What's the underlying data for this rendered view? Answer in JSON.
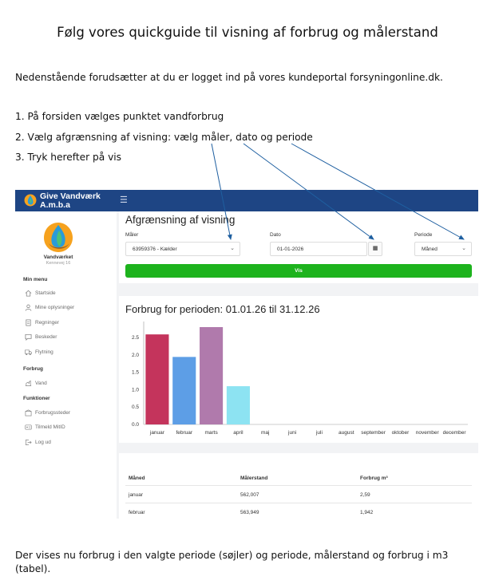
{
  "doc": {
    "title": "Følg vores quickguide til visning af forbrug og målerstand",
    "intro": "Nedenstående forudsætter at du er logget ind på vores kundeportal forsyningonline.dk.",
    "steps": [
      "1. På forsiden vælges punktet vandforbrug",
      "2. Vælg afgrænsning af visning: vælg måler, dato og periode",
      "3. Tryk herefter på vis"
    ],
    "footer": "Der vises nu forbrug i den valgte periode (søjler) og periode, målerstand og forbrug i m3 (tabel)."
  },
  "portal": {
    "brand": [
      "Give Vandværk",
      "A.m.b.a"
    ],
    "sidebar": {
      "org_name": "Vandværket",
      "address": "Kennevej 16",
      "sections": [
        {
          "heading": "Min menu",
          "items": [
            {
              "label": "Startside",
              "icon": "home-icon"
            },
            {
              "label": "Mine oplysninger",
              "icon": "user-icon"
            },
            {
              "label": "Regninger",
              "icon": "document-icon"
            },
            {
              "label": "Beskeder",
              "icon": "message-icon"
            },
            {
              "label": "Flytning",
              "icon": "truck-icon"
            }
          ]
        },
        {
          "heading": "Forbrug",
          "items": [
            {
              "label": "Vand",
              "icon": "water-icon"
            }
          ]
        },
        {
          "heading": "Funktioner",
          "items": [
            {
              "label": "Forbrugssteder",
              "icon": "building-icon"
            },
            {
              "label": "Tilmeld MitID",
              "icon": "id-card-icon"
            },
            {
              "label": "Log ud",
              "icon": "logout-icon"
            }
          ]
        }
      ]
    },
    "filter": {
      "title": "Afgrænsning af visning",
      "meter_label": "Måler",
      "meter_value": "63959376 - Kælder",
      "date_label": "Dato",
      "date_value": "01-01-2026",
      "period_label": "Periode",
      "period_value": "Måned",
      "button": "Vis"
    },
    "chart_title": "Forbrug for perioden: 01.01.26 til 31.12.26",
    "table": {
      "headers": [
        "Måned",
        "Målerstand",
        "Forbrug m³"
      ],
      "rows": [
        [
          "januar",
          "562,007",
          "2,59"
        ],
        [
          "februar",
          "563,949",
          "1,942"
        ]
      ]
    }
  },
  "chart_data": {
    "type": "bar",
    "categories": [
      "januar",
      "februar",
      "marts",
      "april",
      "maj",
      "juni",
      "juli",
      "august",
      "september",
      "oktober",
      "november",
      "december"
    ],
    "values": [
      2.59,
      1.942,
      2.8,
      1.1,
      0,
      0,
      0,
      0,
      0,
      0,
      0,
      0
    ],
    "colors": [
      "#c4345c",
      "#5d9ee6",
      "#b07aac",
      "#8de3f2"
    ],
    "ylim": [
      0,
      2.8
    ],
    "yticks": [
      "0.0",
      "0.5",
      "1.0",
      "1.5",
      "2.0",
      "2.5"
    ],
    "grid": false
  },
  "colors": {
    "topbar": "#1e4584",
    "button": "#1db31d",
    "arrow": "#1e5fa0"
  }
}
